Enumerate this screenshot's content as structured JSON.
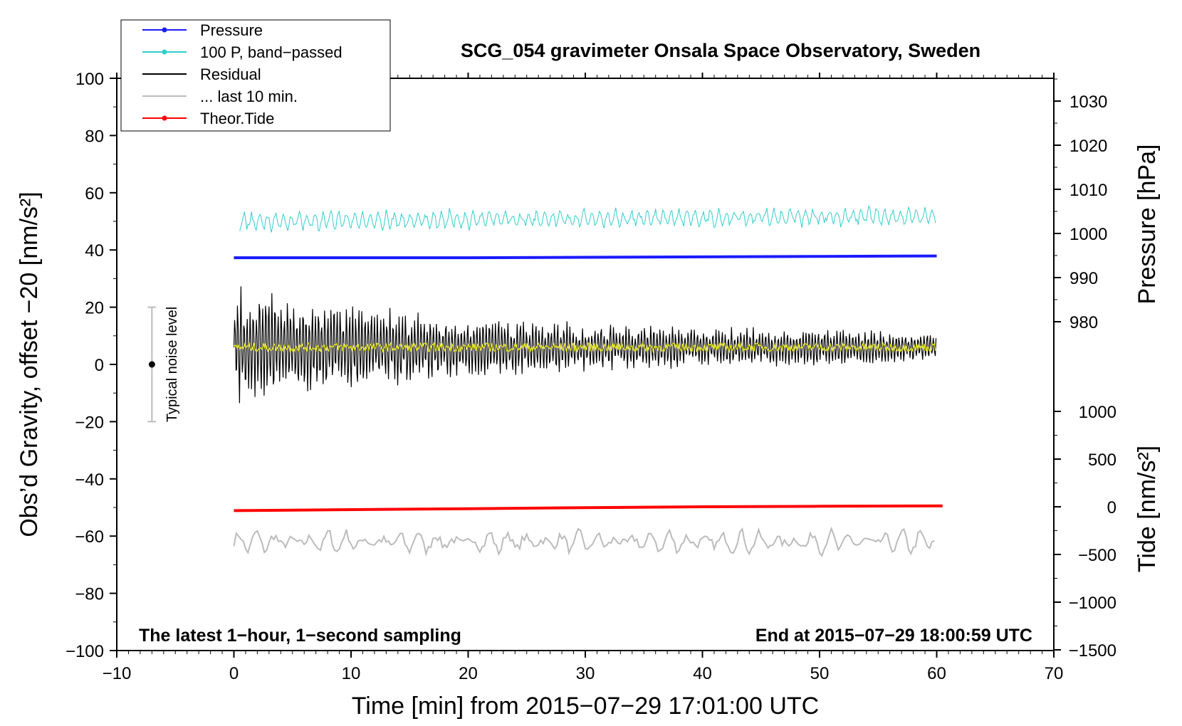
{
  "chart_data": {
    "type": "line",
    "title": "SCG_054 gravimeter Onsala Space Observatory, Sweden",
    "xlabel": "Time [min] from 2015−07−29 17:01:00 UTC",
    "ylabel_left": "Obs’d Gravity, offset −20 [nm/s²]",
    "ylabel_right_top": "Pressure [hPa]",
    "ylabel_right_bottom": "Tide [nm/s²]",
    "xlim": [
      -10,
      70
    ],
    "ylim": [
      -100,
      100
    ],
    "x_ticks": [
      -10,
      0,
      10,
      20,
      30,
      40,
      50,
      60,
      70
    ],
    "x_tick_labels": [
      "−10",
      "0",
      "10",
      "20",
      "30",
      "40",
      "50",
      "60",
      "70"
    ],
    "y_ticks": [
      -100,
      -80,
      -60,
      -40,
      -20,
      0,
      20,
      40,
      60,
      80,
      100
    ],
    "y_tick_labels": [
      "−100",
      "−80",
      "−60",
      "−40",
      "−20",
      "0",
      "20",
      "40",
      "60",
      "80",
      "100"
    ],
    "pressure_axis": {
      "ticks": [
        980,
        990,
        1000,
        1010,
        1020,
        1030
      ],
      "tick_labels": [
        "980",
        "990",
        "1000",
        "1010",
        "1020",
        "1030"
      ],
      "range": [
        967,
        1035
      ]
    },
    "tide_axis": {
      "ticks": [
        -1500,
        -1000,
        -500,
        0,
        500,
        1000
      ],
      "tick_labels": [
        "−1500",
        "−1000",
        "−500",
        "0",
        "500",
        "1000"
      ],
      "range": [
        -1500,
        1000
      ]
    },
    "legend_position": "top-left",
    "legend": [
      {
        "label": "Pressure",
        "color": "#1a1aff",
        "marker": true
      },
      {
        "label": "100 P, band−passed",
        "color": "#33cccc",
        "marker": true
      },
      {
        "label": "Residual",
        "color": "#000000",
        "marker": false
      },
      {
        "label": "... last 10 min.",
        "color": "#bbbbbb",
        "marker": false
      },
      {
        "label": "Theor.Tide",
        "color": "#ff0000",
        "marker": true
      }
    ],
    "annotations": {
      "bottom_left": "The latest 1−hour, 1−second sampling",
      "bottom_right": "End at 2015−07−29 18:00:59 UTC",
      "noise_label": "Typical noise level"
    },
    "noise_bar": {
      "x": -7,
      "y_center": 0,
      "y_low": -20,
      "y_high": 20
    },
    "series": [
      {
        "name": "Pressure",
        "color": "#1a1aff",
        "x": [
          0,
          10,
          20,
          30,
          40,
          50,
          60
        ],
        "y_hpa": [
          994.5,
          994.5,
          994.5,
          994.6,
          994.7,
          994.8,
          994.9
        ]
      },
      {
        "name": "100 P, band−passed",
        "color": "#33cccc",
        "x_range": [
          0.5,
          60
        ],
        "center": 50,
        "amplitude": 2.5,
        "trend_per_min": 0.03
      },
      {
        "name": "Residual",
        "color": "#000000",
        "x_range": [
          0,
          60
        ],
        "center": 6,
        "amplitude_start": 13,
        "amplitude_end": 4
      },
      {
        "name": "... last 10 min.",
        "color": "#bbbbbb",
        "x_range": [
          0,
          60
        ],
        "center": -62,
        "amplitude": 3.5
      },
      {
        "name": "Theor.Tide",
        "color": "#ff0000",
        "x": [
          0,
          10,
          20,
          30,
          40,
          50,
          60.5
        ],
        "y_nms2": [
          -40,
          -30,
          -20,
          -10,
          0,
          5,
          10
        ]
      }
    ],
    "colors": {
      "residual_smooth": "#dddd22"
    }
  }
}
